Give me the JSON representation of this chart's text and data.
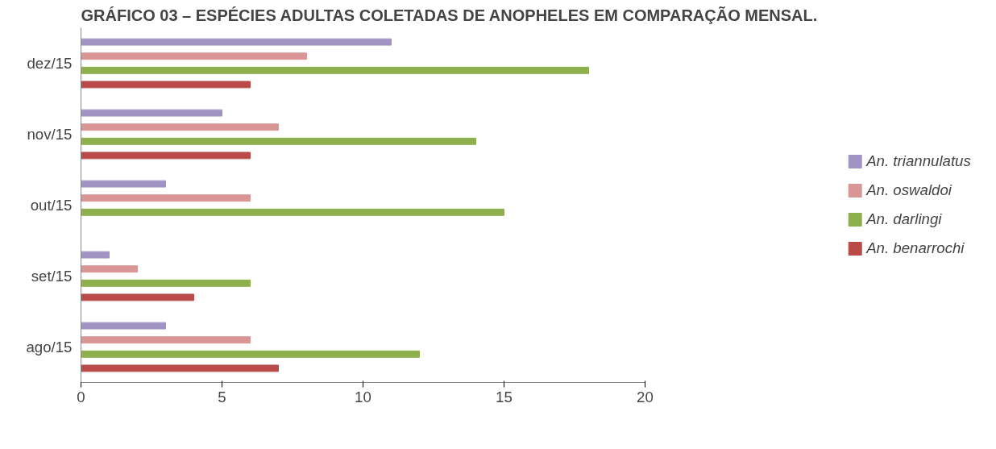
{
  "chart_data": {
    "type": "bar",
    "orientation": "horizontal",
    "title": "GRÁFICO 03 – ESPÉCIES ADULTAS COLETADAS DE ANOPHELES EM COMPARAÇÃO MENSAL.",
    "categories": [
      "dez/15",
      "nov/15",
      "out/15",
      "set/15",
      "ago/15"
    ],
    "series": [
      {
        "name": "An. benarrochi",
        "color": "#b94a48",
        "values": [
          6,
          6,
          0,
          4,
          7
        ]
      },
      {
        "name": "An. darlingi",
        "color": "#8db04d",
        "values": [
          18,
          14,
          15,
          6,
          12
        ]
      },
      {
        "name": "An. oswaldoi",
        "color": "#d99694",
        "values": [
          8,
          7,
          6,
          2,
          6
        ]
      },
      {
        "name": "An. triannulatus",
        "color": "#a194c4",
        "values": [
          11,
          5,
          3,
          1,
          3
        ]
      }
    ],
    "xlim": [
      0,
      20
    ],
    "xticks": [
      0,
      5,
      10,
      15,
      20
    ],
    "grid": false,
    "legend": "right"
  }
}
